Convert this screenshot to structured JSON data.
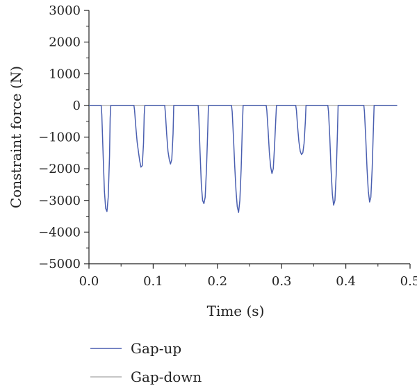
{
  "chart_data": {
    "type": "line",
    "xlabel": "Time (s)",
    "ylabel": "Constraint force (N)",
    "xlim": [
      0.0,
      0.5
    ],
    "ylim": [
      -5000,
      3000
    ],
    "xticks": [
      0.0,
      0.1,
      0.2,
      0.3,
      0.4,
      0.5
    ],
    "xtick_labels": [
      "0.0",
      "0.1",
      "0.2",
      "0.3",
      "0.4",
      "0.5"
    ],
    "yticks": [
      3000,
      2000,
      1000,
      0,
      -1000,
      -2000,
      -3000,
      -4000,
      -5000
    ],
    "ytick_labels": [
      "3000",
      "2000",
      "1000",
      "0",
      "−1000",
      "−2000",
      "−3000",
      "−4000",
      "−5000"
    ],
    "grid": false,
    "legend_position": "bottom-left, below plot",
    "series": [
      {
        "name": "Gap-up",
        "color": "#4a5fb0",
        "x": [
          0.0,
          0.019,
          0.02,
          0.022,
          0.024,
          0.026,
          0.028,
          0.03,
          0.032,
          0.033,
          0.034,
          0.07,
          0.071,
          0.073,
          0.075,
          0.077,
          0.079,
          0.081,
          0.083,
          0.085,
          0.086,
          0.087,
          0.118,
          0.119,
          0.121,
          0.123,
          0.125,
          0.127,
          0.129,
          0.131,
          0.132,
          0.17,
          0.171,
          0.173,
          0.175,
          0.177,
          0.179,
          0.181,
          0.183,
          0.185,
          0.186,
          0.222,
          0.223,
          0.225,
          0.227,
          0.229,
          0.231,
          0.233,
          0.235,
          0.237,
          0.239,
          0.24,
          0.276,
          0.277,
          0.279,
          0.281,
          0.283,
          0.285,
          0.287,
          0.289,
          0.291,
          0.292,
          0.322,
          0.323,
          0.325,
          0.327,
          0.329,
          0.331,
          0.333,
          0.335,
          0.337,
          0.338,
          0.372,
          0.373,
          0.375,
          0.377,
          0.379,
          0.381,
          0.383,
          0.385,
          0.387,
          0.388,
          0.428,
          0.429,
          0.431,
          0.433,
          0.435,
          0.437,
          0.439,
          0.441,
          0.443,
          0.444,
          0.48
        ],
        "y": [
          0,
          0,
          -300,
          -1500,
          -2700,
          -3250,
          -3350,
          -2900,
          -1600,
          -400,
          0,
          0,
          -150,
          -700,
          -1150,
          -1450,
          -1750,
          -1950,
          -1900,
          -1200,
          -300,
          0,
          0,
          -250,
          -900,
          -1450,
          -1700,
          -1850,
          -1700,
          -900,
          0,
          0,
          -350,
          -1500,
          -2500,
          -3000,
          -3100,
          -2900,
          -2000,
          -800,
          0,
          0,
          -200,
          -1000,
          -1900,
          -2700,
          -3200,
          -3380,
          -3000,
          -2000,
          -600,
          0,
          0,
          -150,
          -800,
          -1500,
          -1950,
          -2150,
          -2000,
          -1300,
          -400,
          0,
          0,
          -150,
          -700,
          -1150,
          -1450,
          -1550,
          -1500,
          -1200,
          -500,
          0,
          0,
          -200,
          -1000,
          -2000,
          -2800,
          -3150,
          -3000,
          -2200,
          -800,
          0,
          0,
          -200,
          -1000,
          -2000,
          -2700,
          -3050,
          -2900,
          -2000,
          -700,
          0,
          0
        ]
      },
      {
        "name": "Gap-down",
        "color": "#b4b4b4",
        "x": [
          0.0,
          0.48
        ],
        "y": [
          0,
          0
        ]
      }
    ]
  }
}
